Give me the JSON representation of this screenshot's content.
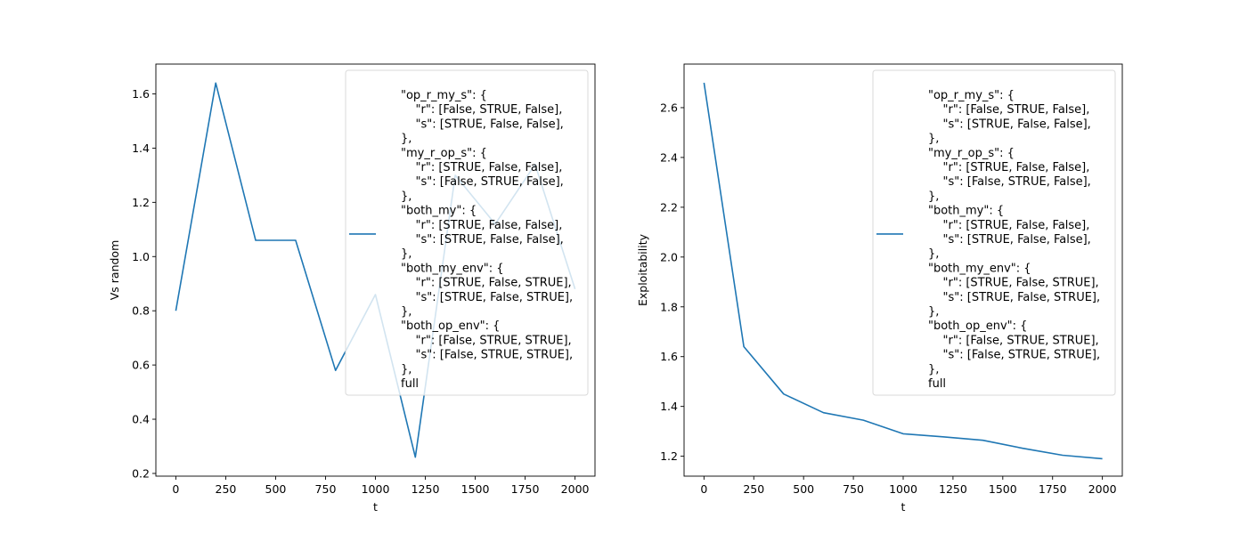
{
  "chart_data": [
    {
      "type": "line",
      "xlabel": "t",
      "ylabel": "Vs random",
      "x": [
        0,
        200,
        400,
        600,
        800,
        1000,
        1200,
        1400,
        1600,
        1800,
        2000
      ],
      "series": [
        {
          "values": [
            0.8,
            1.64,
            1.06,
            1.06,
            0.58,
            0.86,
            0.26,
            1.3,
            1.12,
            1.34,
            0.88
          ]
        }
      ],
      "xlim": [
        -100,
        2100
      ],
      "ylim": [
        0.19,
        1.71
      ],
      "xticks": [
        "0",
        "250",
        "500",
        "750",
        "1000",
        "1250",
        "1500",
        "1750",
        "2000"
      ],
      "yticks": [
        "0.2",
        "0.4",
        "0.6",
        "0.8",
        "1.0",
        "1.2",
        "1.4",
        "1.6"
      ],
      "color": "#1f77b4",
      "grid": false,
      "legend_position": "upper right",
      "legend_lines": [
        "\"op_r_my_s\": {",
        "    \"r\": [False, STRUE, False],",
        "    \"s\": [STRUE, False, False],",
        "},",
        "\"my_r_op_s\": {",
        "    \"r\": [STRUE, False, False],",
        "    \"s\": [False, STRUE, False],",
        "},",
        "\"both_my\": {",
        "    \"r\": [STRUE, False, False],",
        "    \"s\": [STRUE, False, False],",
        "},",
        "\"both_my_env\": {",
        "    \"r\": [STRUE, False, STRUE],",
        "    \"s\": [STRUE, False, STRUE],",
        "},",
        "\"both_op_env\": {",
        "    \"r\": [False, STRUE, STRUE],",
        "    \"s\": [False, STRUE, STRUE],",
        "},",
        "full"
      ]
    },
    {
      "type": "line",
      "xlabel": "t",
      "ylabel": "Exploitability",
      "x": [
        0,
        200,
        400,
        600,
        800,
        1000,
        1200,
        1400,
        1600,
        1800,
        2000
      ],
      "series": [
        {
          "values": [
            2.7,
            1.64,
            1.45,
            1.375,
            1.345,
            1.29,
            1.278,
            1.264,
            1.232,
            1.204,
            1.19
          ]
        }
      ],
      "xlim": [
        -100,
        2100
      ],
      "ylim": [
        1.12,
        2.775
      ],
      "xticks": [
        "0",
        "250",
        "500",
        "750",
        "1000",
        "1250",
        "1500",
        "1750",
        "2000"
      ],
      "yticks": [
        "1.2",
        "1.4",
        "1.6",
        "1.8",
        "2.0",
        "2.2",
        "2.4",
        "2.6"
      ],
      "color": "#1f77b4",
      "grid": false,
      "legend_position": "upper right",
      "legend_lines": [
        "\"op_r_my_s\": {",
        "    \"r\": [False, STRUE, False],",
        "    \"s\": [STRUE, False, False],",
        "},",
        "\"my_r_op_s\": {",
        "    \"r\": [STRUE, False, False],",
        "    \"s\": [False, STRUE, False],",
        "},",
        "\"both_my\": {",
        "    \"r\": [STRUE, False, False],",
        "    \"s\": [STRUE, False, False],",
        "},",
        "\"both_my_env\": {",
        "    \"r\": [STRUE, False, STRUE],",
        "    \"s\": [STRUE, False, STRUE],",
        "},",
        "\"both_op_env\": {",
        "    \"r\": [False, STRUE, STRUE],",
        "    \"s\": [False, STRUE, STRUE],",
        "},",
        "full"
      ]
    }
  ]
}
